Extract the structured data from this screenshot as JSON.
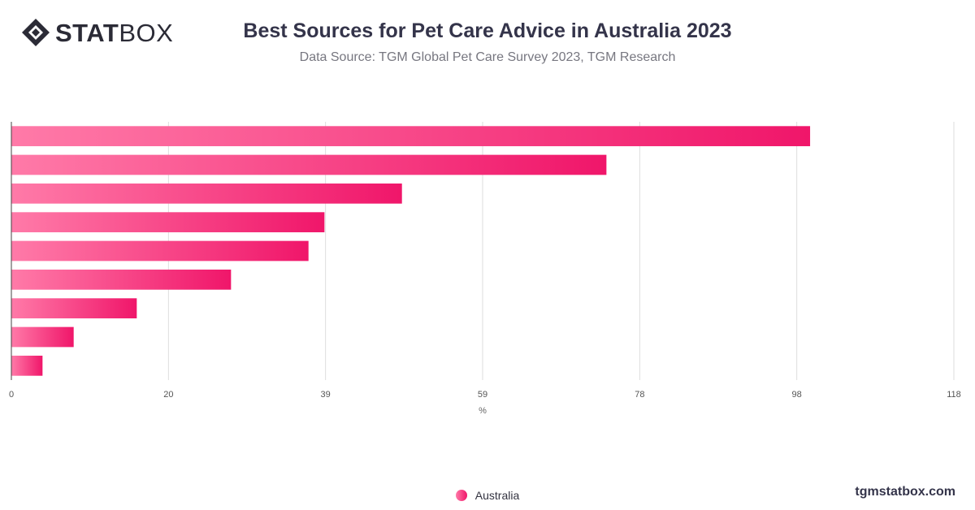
{
  "brand": {
    "logo_bold": "STAT",
    "logo_light": "BOX",
    "footer": "tgmstatbox.com"
  },
  "colors": {
    "bar_start": "#ff7aa8",
    "bar_end": "#f0166a",
    "grid": "#dddddd",
    "axis": "#444444"
  },
  "chart_data": {
    "type": "bar",
    "orientation": "horizontal",
    "title": "Best Sources for Pet Care Advice in Australia 2023",
    "subtitle": "Data Source: TGM Global Pet Care Survey 2023, TGM Research",
    "xlabel": "%",
    "ylabel": "",
    "xlim": [
      0,
      118
    ],
    "x_ticks": [
      "0",
      "20",
      "39",
      "59",
      "78",
      "98",
      "118"
    ],
    "x_tick_values": [
      0,
      19.67,
      39.33,
      59,
      78.67,
      98.33,
      118
    ],
    "categories": [
      "",
      "",
      "",
      "",
      "",
      "",
      "",
      "",
      ""
    ],
    "series": [
      {
        "name": "Australia",
        "values": [
          100,
          74.5,
          48.9,
          39.2,
          37.2,
          27.5,
          15.7,
          7.8,
          3.9
        ]
      }
    ],
    "grid": true,
    "legend_position": "bottom-center"
  }
}
